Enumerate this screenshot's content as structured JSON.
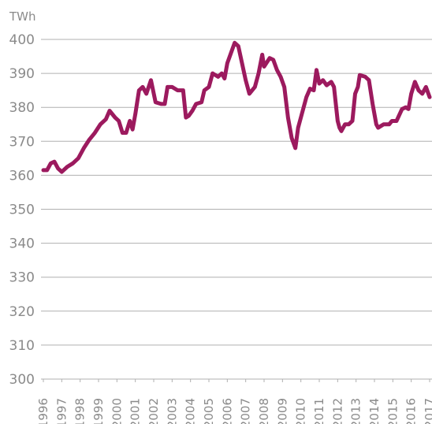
{
  "chart_data": {
    "type": "line",
    "y_label": "TWh",
    "x": [
      1996.0,
      1996.2,
      1996.4,
      1996.6,
      1996.8,
      1997.0,
      1997.3,
      1997.6,
      1997.9,
      1998.2,
      1998.5,
      1998.8,
      1999.1,
      1999.4,
      1999.6,
      1999.9,
      2000.1,
      2000.3,
      2000.5,
      2000.7,
      2000.85,
      2001.0,
      2001.2,
      2001.4,
      2001.6,
      2001.85,
      2002.1,
      2002.4,
      2002.6,
      2002.75,
      2003.0,
      2003.3,
      2003.6,
      2003.75,
      2003.9,
      2004.1,
      2004.3,
      2004.6,
      2004.75,
      2005.0,
      2005.2,
      2005.5,
      2005.7,
      2005.85,
      2006.0,
      2006.2,
      2006.4,
      2006.6,
      2006.8,
      2007.0,
      2007.2,
      2007.5,
      2007.7,
      2007.9,
      2008.0,
      2008.3,
      2008.5,
      2008.7,
      2008.9,
      2009.1,
      2009.3,
      2009.5,
      2009.7,
      2009.85,
      2010.1,
      2010.3,
      2010.5,
      2010.7,
      2010.85,
      2011.0,
      2011.2,
      2011.4,
      2011.65,
      2011.8,
      2012.0,
      2012.1,
      2012.2,
      2012.4,
      2012.6,
      2012.8,
      2012.95,
      2013.1,
      2013.2,
      2013.5,
      2013.7,
      2013.9,
      2014.1,
      2014.2,
      2014.5,
      2014.8,
      2014.95,
      2015.2,
      2015.5,
      2015.7,
      2015.85,
      2016.0,
      2016.2,
      2016.4,
      2016.6,
      2016.8,
      2017.0
    ],
    "series": [
      {
        "color": "#9c1a5e",
        "values": [
          361.5,
          361.5,
          363.5,
          364,
          362,
          361,
          362.5,
          363.5,
          365,
          368,
          370.5,
          372.5,
          375,
          376.5,
          379,
          377,
          376,
          372.5,
          372.5,
          376,
          373.5,
          378,
          385,
          386,
          384,
          388,
          381.5,
          381,
          381,
          386,
          386,
          385,
          385,
          377,
          377.5,
          379,
          381,
          381.5,
          385,
          386,
          390,
          389,
          390,
          388.5,
          393,
          396,
          399,
          398,
          393,
          388,
          384,
          386,
          390,
          395.5,
          392,
          394.5,
          394,
          391,
          389,
          386,
          377,
          371,
          368,
          374,
          379,
          383,
          385.5,
          385,
          391,
          387,
          388,
          386.5,
          387.5,
          386,
          376,
          374,
          373,
          375,
          375,
          376,
          384,
          386,
          389.5,
          389,
          388,
          381,
          375,
          374,
          375,
          375,
          376,
          376,
          379.5,
          380,
          379.5,
          384,
          387.5,
          385,
          384,
          386,
          383
        ]
      }
    ],
    "xlim": [
      1996,
      2017
    ],
    "xticks": [
      1996,
      1997,
      1998,
      1999,
      2000,
      2001,
      2002,
      2003,
      2004,
      2005,
      2006,
      2007,
      2008,
      2009,
      2010,
      2011,
      2012,
      2013,
      2014,
      2015,
      2016,
      2017
    ],
    "ylim": [
      300,
      400
    ],
    "yticks": [
      300,
      310,
      320,
      330,
      340,
      350,
      360,
      370,
      380,
      390,
      400
    ],
    "grid": true
  }
}
